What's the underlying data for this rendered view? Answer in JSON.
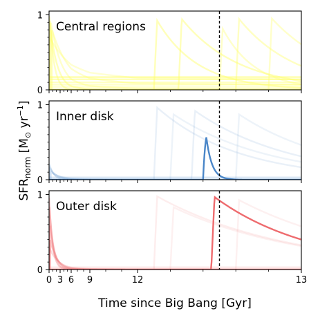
{
  "figure": {
    "ylabel_main": "SFR",
    "ylabel_sub": "norm",
    "ylabel_units_pre": " [M",
    "ylabel_sun": "⊙",
    "ylabel_units_mid": " yr",
    "ylabel_exp": "−1",
    "ylabel_units_post": "]",
    "xlabel": "Time since Big Bang [Gyr]"
  },
  "chart_data": {
    "type": "line",
    "xlabel": "Time since Big Bang [Gyr]",
    "ylabel": "SFR_norm [M_sun yr^-1]",
    "x_ticks": [
      0,
      3,
      6,
      9,
      12,
      13
    ],
    "x_tick_labels": [
      "0",
      "3",
      "6",
      "9",
      "12",
      "13"
    ],
    "x_scale": "nonlinear (compressed at late times)",
    "vline_x": 12.5,
    "panels": [
      {
        "name": "Central regions",
        "color": "#ffff66",
        "ylim": [
          0,
          1.05
        ],
        "yticks": [
          0,
          1
        ],
        "highlight": null,
        "faint_tracks": [
          {
            "type": "burst",
            "t0": 0.0,
            "peak": 1.0,
            "tau": 2.0,
            "opacity": 0.45
          },
          {
            "type": "burst",
            "t0": 0.2,
            "peak": 0.95,
            "tau": 1.2,
            "opacity": 0.4
          },
          {
            "type": "burst",
            "t0": 0.5,
            "peak": 0.9,
            "tau": 3.0,
            "opacity": 0.35
          },
          {
            "type": "burst",
            "t0": 0.8,
            "peak": 0.8,
            "tau": 5.0,
            "opacity": 0.35
          },
          {
            "type": "burst",
            "t0": 0.1,
            "peak": 0.7,
            "tau": 8.0,
            "opacity": 0.3
          },
          {
            "type": "burst",
            "t0": 12.1,
            "peak": 1.0,
            "tau": 0.25,
            "opacity": 0.45
          },
          {
            "type": "burst",
            "t0": 12.25,
            "peak": 1.0,
            "tau": 0.35,
            "opacity": 0.45
          },
          {
            "type": "burst",
            "t0": 12.6,
            "peak": 1.0,
            "tau": 0.35,
            "opacity": 0.4
          },
          {
            "type": "burst",
            "t0": 12.8,
            "peak": 1.0,
            "tau": 0.4,
            "opacity": 0.35
          },
          {
            "type": "burst",
            "t0": 12.5,
            "peak": 0.9,
            "tau": 0.2,
            "opacity": 0.35
          },
          {
            "type": "flat",
            "level": 0.17,
            "opacity": 0.55
          },
          {
            "type": "flat",
            "level": 0.14,
            "opacity": 0.45
          },
          {
            "type": "flat",
            "level": 0.1,
            "opacity": 0.4
          },
          {
            "type": "flat",
            "level": 0.07,
            "opacity": 0.35
          },
          {
            "type": "flat",
            "level": 0.04,
            "opacity": 0.3
          }
        ]
      },
      {
        "name": "Inner disk",
        "color": "#4a86c8",
        "ylim": [
          0,
          1.05
        ],
        "yticks": [
          0,
          1
        ],
        "highlight": {
          "type": "burst",
          "t0": 12.4,
          "peak": 1.0,
          "tau": 0.035
        },
        "faint_tracks": [
          {
            "type": "burst",
            "t0": 0.0,
            "peak": 0.22,
            "tau": 1.2,
            "opacity": 0.25
          },
          {
            "type": "burst",
            "t0": 0.2,
            "peak": 0.15,
            "tau": 2.0,
            "opacity": 0.2
          },
          {
            "type": "burst",
            "t0": 0.5,
            "peak": 0.1,
            "tau": 3.0,
            "opacity": 0.18
          },
          {
            "type": "burst",
            "t0": 12.1,
            "peak": 1.0,
            "tau": 0.5,
            "opacity": 0.12
          },
          {
            "type": "burst",
            "t0": 12.2,
            "peak": 0.9,
            "tau": 0.6,
            "opacity": 0.1
          },
          {
            "type": "burst",
            "t0": 12.33,
            "peak": 0.95,
            "tau": 0.6,
            "opacity": 0.12
          },
          {
            "type": "burst",
            "t0": 12.6,
            "peak": 0.9,
            "tau": 0.6,
            "opacity": 0.1
          },
          {
            "type": "flat",
            "level": 0.03,
            "opacity": 0.2
          }
        ]
      },
      {
        "name": "Outer disk",
        "color": "#ee6b6e",
        "ylim": [
          0,
          1.05
        ],
        "yticks": [
          0,
          1
        ],
        "highlight": {
          "type": "burst",
          "t0": 12.45,
          "peak": 1.0,
          "tau": 0.6
        },
        "faint_tracks": [
          {
            "type": "burst",
            "t0": 0.0,
            "peak": 1.0,
            "tau": 0.9,
            "opacity": 0.35
          },
          {
            "type": "burst",
            "t0": 0.1,
            "peak": 0.85,
            "tau": 1.1,
            "opacity": 0.3
          },
          {
            "type": "burst",
            "t0": 0.2,
            "peak": 0.6,
            "tau": 1.4,
            "opacity": 0.3
          },
          {
            "type": "burst",
            "t0": 0.3,
            "peak": 0.4,
            "tau": 1.8,
            "opacity": 0.35
          },
          {
            "type": "burst",
            "t0": 0.0,
            "peak": 0.3,
            "tau": 2.5,
            "opacity": 0.25
          },
          {
            "type": "burst",
            "t0": 12.1,
            "peak": 1.0,
            "tau": 0.8,
            "opacity": 0.12
          },
          {
            "type": "burst",
            "t0": 12.2,
            "peak": 0.85,
            "tau": 0.8,
            "opacity": 0.1
          },
          {
            "type": "burst",
            "t0": 12.6,
            "peak": 0.95,
            "tau": 0.8,
            "opacity": 0.1
          },
          {
            "type": "flat",
            "level": 0.03,
            "opacity": 0.15
          }
        ]
      }
    ]
  }
}
